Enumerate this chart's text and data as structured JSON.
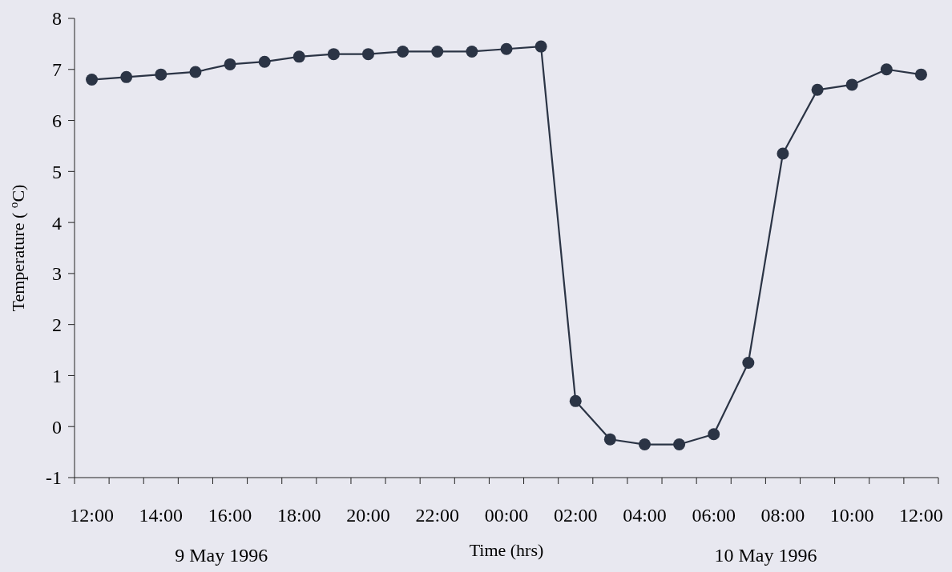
{
  "chart_data": {
    "type": "line",
    "xlabel": "Time (hrs)",
    "ylabel": "Temperature ( $^{o}$C)",
    "categories": [
      "12:00",
      null,
      "14:00",
      null,
      "16:00",
      null,
      "18:00",
      null,
      "20:00",
      null,
      "22:00",
      null,
      "00:00",
      null,
      "02:00",
      null,
      "04:00",
      null,
      "06:00",
      null,
      "08:00",
      null,
      "10:00",
      null,
      "12:00"
    ],
    "series": [
      {
        "color": "#2b3445",
        "values": [
          6.8,
          6.85,
          6.9,
          6.95,
          7.1,
          7.15,
          7.25,
          7.3,
          7.3,
          7.35,
          7.35,
          7.35,
          7.4,
          7.45,
          0.5,
          -0.25,
          -0.35,
          -0.35,
          -0.15,
          1.25,
          5.35,
          6.6,
          6.7,
          7.0,
          6.9
        ]
      }
    ],
    "ylim": [
      -1,
      8
    ],
    "yticks": [
      -1,
      0,
      1,
      2,
      3,
      4,
      5,
      6,
      7,
      8
    ],
    "grid": false,
    "marker": "circle",
    "line_style": "solid",
    "annotations": [
      "9 May 1996",
      "10 May 1996"
    ]
  }
}
